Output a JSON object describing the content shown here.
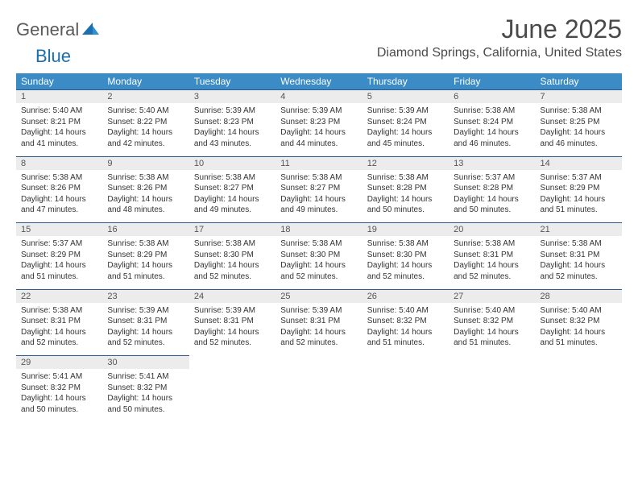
{
  "logo": {
    "part1": "General",
    "part2": "Blue"
  },
  "title": "June 2025",
  "location": "Diamond Springs, California, United States",
  "colors": {
    "header_bg": "#3b8bc6",
    "header_text": "#ffffff",
    "daynum_bg": "#ececec",
    "border": "#2d5a8a",
    "logo_gray": "#5a5a5a",
    "logo_blue": "#1a6fb0"
  },
  "weekdays": [
    "Sunday",
    "Monday",
    "Tuesday",
    "Wednesday",
    "Thursday",
    "Friday",
    "Saturday"
  ],
  "weeks": [
    [
      {
        "n": "1",
        "sr": "Sunrise: 5:40 AM",
        "ss": "Sunset: 8:21 PM",
        "d1": "Daylight: 14 hours",
        "d2": "and 41 minutes."
      },
      {
        "n": "2",
        "sr": "Sunrise: 5:40 AM",
        "ss": "Sunset: 8:22 PM",
        "d1": "Daylight: 14 hours",
        "d2": "and 42 minutes."
      },
      {
        "n": "3",
        "sr": "Sunrise: 5:39 AM",
        "ss": "Sunset: 8:23 PM",
        "d1": "Daylight: 14 hours",
        "d2": "and 43 minutes."
      },
      {
        "n": "4",
        "sr": "Sunrise: 5:39 AM",
        "ss": "Sunset: 8:23 PM",
        "d1": "Daylight: 14 hours",
        "d2": "and 44 minutes."
      },
      {
        "n": "5",
        "sr": "Sunrise: 5:39 AM",
        "ss": "Sunset: 8:24 PM",
        "d1": "Daylight: 14 hours",
        "d2": "and 45 minutes."
      },
      {
        "n": "6",
        "sr": "Sunrise: 5:38 AM",
        "ss": "Sunset: 8:24 PM",
        "d1": "Daylight: 14 hours",
        "d2": "and 46 minutes."
      },
      {
        "n": "7",
        "sr": "Sunrise: 5:38 AM",
        "ss": "Sunset: 8:25 PM",
        "d1": "Daylight: 14 hours",
        "d2": "and 46 minutes."
      }
    ],
    [
      {
        "n": "8",
        "sr": "Sunrise: 5:38 AM",
        "ss": "Sunset: 8:26 PM",
        "d1": "Daylight: 14 hours",
        "d2": "and 47 minutes."
      },
      {
        "n": "9",
        "sr": "Sunrise: 5:38 AM",
        "ss": "Sunset: 8:26 PM",
        "d1": "Daylight: 14 hours",
        "d2": "and 48 minutes."
      },
      {
        "n": "10",
        "sr": "Sunrise: 5:38 AM",
        "ss": "Sunset: 8:27 PM",
        "d1": "Daylight: 14 hours",
        "d2": "and 49 minutes."
      },
      {
        "n": "11",
        "sr": "Sunrise: 5:38 AM",
        "ss": "Sunset: 8:27 PM",
        "d1": "Daylight: 14 hours",
        "d2": "and 49 minutes."
      },
      {
        "n": "12",
        "sr": "Sunrise: 5:38 AM",
        "ss": "Sunset: 8:28 PM",
        "d1": "Daylight: 14 hours",
        "d2": "and 50 minutes."
      },
      {
        "n": "13",
        "sr": "Sunrise: 5:37 AM",
        "ss": "Sunset: 8:28 PM",
        "d1": "Daylight: 14 hours",
        "d2": "and 50 minutes."
      },
      {
        "n": "14",
        "sr": "Sunrise: 5:37 AM",
        "ss": "Sunset: 8:29 PM",
        "d1": "Daylight: 14 hours",
        "d2": "and 51 minutes."
      }
    ],
    [
      {
        "n": "15",
        "sr": "Sunrise: 5:37 AM",
        "ss": "Sunset: 8:29 PM",
        "d1": "Daylight: 14 hours",
        "d2": "and 51 minutes."
      },
      {
        "n": "16",
        "sr": "Sunrise: 5:38 AM",
        "ss": "Sunset: 8:29 PM",
        "d1": "Daylight: 14 hours",
        "d2": "and 51 minutes."
      },
      {
        "n": "17",
        "sr": "Sunrise: 5:38 AM",
        "ss": "Sunset: 8:30 PM",
        "d1": "Daylight: 14 hours",
        "d2": "and 52 minutes."
      },
      {
        "n": "18",
        "sr": "Sunrise: 5:38 AM",
        "ss": "Sunset: 8:30 PM",
        "d1": "Daylight: 14 hours",
        "d2": "and 52 minutes."
      },
      {
        "n": "19",
        "sr": "Sunrise: 5:38 AM",
        "ss": "Sunset: 8:30 PM",
        "d1": "Daylight: 14 hours",
        "d2": "and 52 minutes."
      },
      {
        "n": "20",
        "sr": "Sunrise: 5:38 AM",
        "ss": "Sunset: 8:31 PM",
        "d1": "Daylight: 14 hours",
        "d2": "and 52 minutes."
      },
      {
        "n": "21",
        "sr": "Sunrise: 5:38 AM",
        "ss": "Sunset: 8:31 PM",
        "d1": "Daylight: 14 hours",
        "d2": "and 52 minutes."
      }
    ],
    [
      {
        "n": "22",
        "sr": "Sunrise: 5:38 AM",
        "ss": "Sunset: 8:31 PM",
        "d1": "Daylight: 14 hours",
        "d2": "and 52 minutes."
      },
      {
        "n": "23",
        "sr": "Sunrise: 5:39 AM",
        "ss": "Sunset: 8:31 PM",
        "d1": "Daylight: 14 hours",
        "d2": "and 52 minutes."
      },
      {
        "n": "24",
        "sr": "Sunrise: 5:39 AM",
        "ss": "Sunset: 8:31 PM",
        "d1": "Daylight: 14 hours",
        "d2": "and 52 minutes."
      },
      {
        "n": "25",
        "sr": "Sunrise: 5:39 AM",
        "ss": "Sunset: 8:31 PM",
        "d1": "Daylight: 14 hours",
        "d2": "and 52 minutes."
      },
      {
        "n": "26",
        "sr": "Sunrise: 5:40 AM",
        "ss": "Sunset: 8:32 PM",
        "d1": "Daylight: 14 hours",
        "d2": "and 51 minutes."
      },
      {
        "n": "27",
        "sr": "Sunrise: 5:40 AM",
        "ss": "Sunset: 8:32 PM",
        "d1": "Daylight: 14 hours",
        "d2": "and 51 minutes."
      },
      {
        "n": "28",
        "sr": "Sunrise: 5:40 AM",
        "ss": "Sunset: 8:32 PM",
        "d1": "Daylight: 14 hours",
        "d2": "and 51 minutes."
      }
    ],
    [
      {
        "n": "29",
        "sr": "Sunrise: 5:41 AM",
        "ss": "Sunset: 8:32 PM",
        "d1": "Daylight: 14 hours",
        "d2": "and 50 minutes."
      },
      {
        "n": "30",
        "sr": "Sunrise: 5:41 AM",
        "ss": "Sunset: 8:32 PM",
        "d1": "Daylight: 14 hours",
        "d2": "and 50 minutes."
      },
      null,
      null,
      null,
      null,
      null
    ]
  ]
}
